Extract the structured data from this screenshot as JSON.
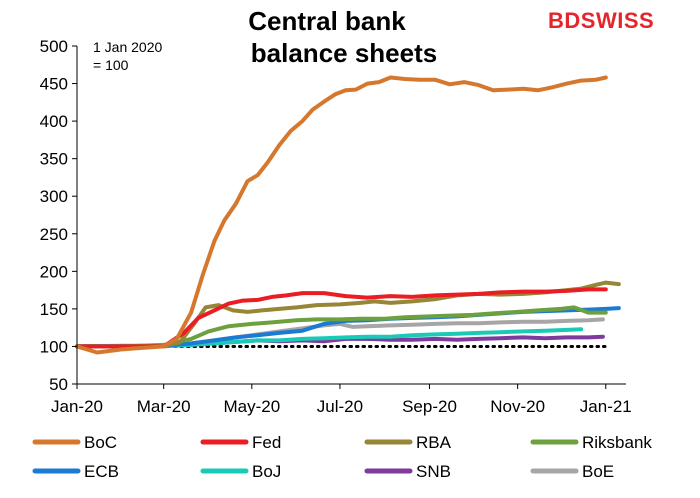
{
  "brand": {
    "part1": "BD",
    "part2": "SWISS",
    "color": "#e4262c"
  },
  "chart_data": {
    "type": "line",
    "title": [
      "Central bank",
      "balance sheets"
    ],
    "annotation": [
      "1 Jan 2020",
      "= 100"
    ],
    "ylim": [
      50,
      500
    ],
    "yticks": [
      50,
      100,
      150,
      200,
      250,
      300,
      350,
      400,
      450,
      500
    ],
    "xlim": [
      "2020-01-01",
      "2021-01-15"
    ],
    "xticks": [
      {
        "label": "Jan-20",
        "date": "2020-01-01"
      },
      {
        "label": "Mar-20",
        "date": "2020-03-01"
      },
      {
        "label": "May-20",
        "date": "2020-05-01"
      },
      {
        "label": "Jul-20",
        "date": "2020-07-01"
      },
      {
        "label": "Sep-20",
        "date": "2020-09-01"
      },
      {
        "label": "Nov-20",
        "date": "2020-11-01"
      },
      {
        "label": "Jan-21",
        "date": "2021-01-01"
      }
    ],
    "reference_line": {
      "y": 100,
      "style": "dotted",
      "color": "#000000",
      "from": "2020-01-01",
      "to": "2021-01-01"
    },
    "legend_position": "bottom",
    "series": [
      {
        "name": "BoC",
        "color": "#d5782e",
        "points": [
          [
            "2020-01-01",
            100
          ],
          [
            "2020-01-15",
            92
          ],
          [
            "2020-02-01",
            96
          ],
          [
            "2020-02-15",
            98
          ],
          [
            "2020-03-01",
            100
          ],
          [
            "2020-03-10",
            110
          ],
          [
            "2020-03-20",
            145
          ],
          [
            "2020-03-28",
            195
          ],
          [
            "2020-04-05",
            240
          ],
          [
            "2020-04-12",
            268
          ],
          [
            "2020-04-20",
            290
          ],
          [
            "2020-04-28",
            320
          ],
          [
            "2020-05-05",
            328
          ],
          [
            "2020-05-12",
            345
          ],
          [
            "2020-05-20",
            368
          ],
          [
            "2020-05-28",
            387
          ],
          [
            "2020-06-05",
            400
          ],
          [
            "2020-06-12",
            415
          ],
          [
            "2020-06-20",
            426
          ],
          [
            "2020-06-28",
            436
          ],
          [
            "2020-07-05",
            441
          ],
          [
            "2020-07-12",
            442
          ],
          [
            "2020-07-20",
            450
          ],
          [
            "2020-07-28",
            452
          ],
          [
            "2020-08-05",
            458
          ],
          [
            "2020-08-15",
            456
          ],
          [
            "2020-08-25",
            455
          ],
          [
            "2020-09-05",
            455
          ],
          [
            "2020-09-15",
            449
          ],
          [
            "2020-09-25",
            452
          ],
          [
            "2020-10-05",
            448
          ],
          [
            "2020-10-15",
            441
          ],
          [
            "2020-10-25",
            442
          ],
          [
            "2020-11-05",
            443
          ],
          [
            "2020-11-15",
            441
          ],
          [
            "2020-11-25",
            445
          ],
          [
            "2020-12-05",
            450
          ],
          [
            "2020-12-15",
            454
          ],
          [
            "2020-12-25",
            455
          ],
          [
            "2021-01-01",
            458
          ]
        ]
      },
      {
        "name": "Fed",
        "color": "#ea1c24",
        "points": [
          [
            "2020-01-01",
            100
          ],
          [
            "2020-02-01",
            100
          ],
          [
            "2020-03-01",
            100
          ],
          [
            "2020-03-15",
            118
          ],
          [
            "2020-03-25",
            138
          ],
          [
            "2020-04-05",
            148
          ],
          [
            "2020-04-15",
            157
          ],
          [
            "2020-04-25",
            161
          ],
          [
            "2020-05-05",
            162
          ],
          [
            "2020-05-15",
            166
          ],
          [
            "2020-05-25",
            168
          ],
          [
            "2020-06-05",
            171
          ],
          [
            "2020-06-20",
            171
          ],
          [
            "2020-07-05",
            167
          ],
          [
            "2020-07-20",
            165
          ],
          [
            "2020-08-05",
            167
          ],
          [
            "2020-08-20",
            166
          ],
          [
            "2020-09-05",
            168
          ],
          [
            "2020-09-20",
            169
          ],
          [
            "2020-10-05",
            170
          ],
          [
            "2020-10-20",
            172
          ],
          [
            "2020-11-05",
            173
          ],
          [
            "2020-11-20",
            173
          ],
          [
            "2020-12-05",
            174
          ],
          [
            "2020-12-20",
            176
          ],
          [
            "2021-01-01",
            176
          ]
        ]
      },
      {
        "name": "RBA",
        "color": "#978635",
        "points": [
          [
            "2020-01-01",
            100
          ],
          [
            "2020-02-01",
            100
          ],
          [
            "2020-03-01",
            101
          ],
          [
            "2020-03-12",
            105
          ],
          [
            "2020-03-22",
            130
          ],
          [
            "2020-03-30",
            152
          ],
          [
            "2020-04-08",
            155
          ],
          [
            "2020-04-18",
            148
          ],
          [
            "2020-04-28",
            146
          ],
          [
            "2020-05-08",
            148
          ],
          [
            "2020-05-20",
            150
          ],
          [
            "2020-06-01",
            152
          ],
          [
            "2020-06-15",
            155
          ],
          [
            "2020-07-01",
            156
          ],
          [
            "2020-07-15",
            158
          ],
          [
            "2020-07-25",
            160
          ],
          [
            "2020-08-05",
            158
          ],
          [
            "2020-08-20",
            160
          ],
          [
            "2020-09-05",
            163
          ],
          [
            "2020-09-20",
            168
          ],
          [
            "2020-10-05",
            170
          ],
          [
            "2020-10-20",
            169
          ],
          [
            "2020-11-05",
            170
          ],
          [
            "2020-11-20",
            172
          ],
          [
            "2020-12-05",
            175
          ],
          [
            "2020-12-15",
            177
          ],
          [
            "2020-12-25",
            182
          ],
          [
            "2021-01-01",
            185
          ],
          [
            "2021-01-10",
            183
          ]
        ]
      },
      {
        "name": "Riksbank",
        "color": "#6ca13d",
        "points": [
          [
            "2020-01-01",
            100
          ],
          [
            "2020-02-01",
            100
          ],
          [
            "2020-03-01",
            102
          ],
          [
            "2020-03-20",
            110
          ],
          [
            "2020-04-01",
            120
          ],
          [
            "2020-04-15",
            127
          ],
          [
            "2020-05-01",
            130
          ],
          [
            "2020-05-15",
            132
          ],
          [
            "2020-06-01",
            135
          ],
          [
            "2020-06-15",
            136
          ],
          [
            "2020-07-01",
            136
          ],
          [
            "2020-07-15",
            137
          ],
          [
            "2020-08-01",
            137
          ],
          [
            "2020-08-15",
            139
          ],
          [
            "2020-09-01",
            140
          ],
          [
            "2020-09-15",
            141
          ],
          [
            "2020-10-01",
            142
          ],
          [
            "2020-10-15",
            144
          ],
          [
            "2020-11-01",
            146
          ],
          [
            "2020-11-15",
            148
          ],
          [
            "2020-12-01",
            150
          ],
          [
            "2020-12-10",
            152
          ],
          [
            "2020-12-20",
            145
          ],
          [
            "2021-01-01",
            145
          ]
        ]
      },
      {
        "name": "ECB",
        "color": "#1b7ad1",
        "points": [
          [
            "2020-01-01",
            100
          ],
          [
            "2020-02-01",
            100
          ],
          [
            "2020-03-01",
            101
          ],
          [
            "2020-03-20",
            104
          ],
          [
            "2020-04-05",
            108
          ],
          [
            "2020-04-20",
            112
          ],
          [
            "2020-05-05",
            115
          ],
          [
            "2020-05-20",
            118
          ],
          [
            "2020-06-05",
            121
          ],
          [
            "2020-06-20",
            130
          ],
          [
            "2020-07-05",
            134
          ],
          [
            "2020-07-20",
            135
          ],
          [
            "2020-08-05",
            137
          ],
          [
            "2020-08-20",
            138
          ],
          [
            "2020-09-05",
            139
          ],
          [
            "2020-09-20",
            140
          ],
          [
            "2020-10-05",
            142
          ],
          [
            "2020-10-20",
            144
          ],
          [
            "2020-11-05",
            146
          ],
          [
            "2020-11-20",
            147
          ],
          [
            "2020-12-05",
            148
          ],
          [
            "2020-12-20",
            149
          ],
          [
            "2021-01-01",
            150
          ],
          [
            "2021-01-10",
            151
          ]
        ]
      },
      {
        "name": "BoJ",
        "color": "#19cbb6",
        "points": [
          [
            "2020-01-01",
            100
          ],
          [
            "2020-02-01",
            101
          ],
          [
            "2020-03-01",
            101
          ],
          [
            "2020-03-20",
            102
          ],
          [
            "2020-04-05",
            104
          ],
          [
            "2020-04-20",
            106
          ],
          [
            "2020-05-05",
            108
          ],
          [
            "2020-05-20",
            108
          ],
          [
            "2020-06-05",
            110
          ],
          [
            "2020-06-20",
            111
          ],
          [
            "2020-07-05",
            112
          ],
          [
            "2020-07-20",
            113
          ],
          [
            "2020-08-05",
            113
          ],
          [
            "2020-08-20",
            115
          ],
          [
            "2020-09-05",
            116
          ],
          [
            "2020-09-20",
            117
          ],
          [
            "2020-10-05",
            118
          ],
          [
            "2020-10-20",
            119
          ],
          [
            "2020-11-05",
            120
          ],
          [
            "2020-11-20",
            121
          ],
          [
            "2020-12-05",
            122
          ],
          [
            "2020-12-15",
            123
          ]
        ]
      },
      {
        "name": "SNB",
        "color": "#7e3a9d",
        "points": [
          [
            "2020-01-01",
            100
          ],
          [
            "2020-02-01",
            100
          ],
          [
            "2020-03-01",
            101
          ],
          [
            "2020-03-20",
            102
          ],
          [
            "2020-04-05",
            104
          ],
          [
            "2020-04-20",
            106
          ],
          [
            "2020-05-05",
            108
          ],
          [
            "2020-05-20",
            107
          ],
          [
            "2020-06-05",
            108
          ],
          [
            "2020-06-20",
            107
          ],
          [
            "2020-07-05",
            110
          ],
          [
            "2020-07-20",
            110
          ],
          [
            "2020-08-05",
            109
          ],
          [
            "2020-08-20",
            109
          ],
          [
            "2020-09-05",
            110
          ],
          [
            "2020-09-20",
            109
          ],
          [
            "2020-10-05",
            110
          ],
          [
            "2020-10-20",
            111
          ],
          [
            "2020-11-05",
            112
          ],
          [
            "2020-11-20",
            111
          ],
          [
            "2020-12-05",
            112
          ],
          [
            "2020-12-20",
            112
          ],
          [
            "2020-12-30",
            113
          ]
        ]
      },
      {
        "name": "BoE",
        "color": "#a6a6a6",
        "points": [
          [
            "2020-01-01",
            100
          ],
          [
            "2020-02-01",
            100
          ],
          [
            "2020-03-01",
            100
          ],
          [
            "2020-03-20",
            102
          ],
          [
            "2020-04-05",
            108
          ],
          [
            "2020-04-20",
            112
          ],
          [
            "2020-05-05",
            116
          ],
          [
            "2020-05-20",
            120
          ],
          [
            "2020-06-05",
            124
          ],
          [
            "2020-06-20",
            128
          ],
          [
            "2020-07-01",
            130
          ],
          [
            "2020-07-10",
            126
          ],
          [
            "2020-07-20",
            127
          ],
          [
            "2020-08-05",
            128
          ],
          [
            "2020-08-20",
            129
          ],
          [
            "2020-09-05",
            130
          ],
          [
            "2020-09-20",
            131
          ],
          [
            "2020-10-05",
            131
          ],
          [
            "2020-10-20",
            132
          ],
          [
            "2020-11-05",
            133
          ],
          [
            "2020-11-20",
            133
          ],
          [
            "2020-12-05",
            134
          ],
          [
            "2020-12-20",
            135
          ],
          [
            "2020-12-30",
            136
          ]
        ]
      }
    ]
  }
}
